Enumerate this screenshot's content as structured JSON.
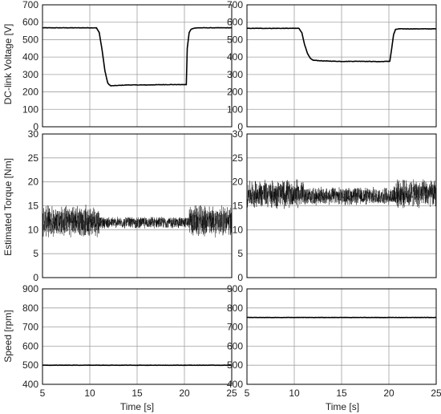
{
  "chart_data": {
    "type": "line",
    "layout": "3 rows x 2 columns, shared x-axis per column",
    "grid": true,
    "colors": {
      "line": "#000000",
      "grid": "#a0a0a0",
      "frame": "#000000"
    },
    "x_axis": {
      "label": "Time [s]",
      "range": [
        5,
        25
      ],
      "ticks": [
        5,
        10,
        15,
        20,
        25
      ]
    },
    "rows": [
      {
        "ylabel": "DC-link Voltage [V]",
        "ylim": [
          0,
          700
        ],
        "yticks": [
          0,
          100,
          200,
          300,
          400,
          500,
          600,
          700
        ],
        "style": "trace",
        "series": [
          {
            "column": "left",
            "x": [
              5,
              10.7,
              11.0,
              11.3,
              11.6,
              11.9,
              12.2,
              14,
              16,
              18,
              20.2,
              20.3,
              20.5,
              20.7,
              21,
              21.5,
              25
            ],
            "y": [
              568,
              568,
              540,
              440,
              320,
              250,
              235,
              240,
              240,
              242,
              242,
              450,
              540,
              560,
              566,
              568,
              568
            ]
          },
          {
            "column": "right",
            "x": [
              5,
              10.5,
              10.8,
              11.1,
              11.4,
              11.7,
              12,
              13,
              15,
              17,
              19,
              20.1,
              20.3,
              20.5,
              20.7,
              21,
              25
            ],
            "y": [
              565,
              565,
              540,
              470,
              420,
              392,
              382,
              378,
              375,
              376,
              374,
              376,
              450,
              530,
              558,
              562,
              562
            ]
          }
        ]
      },
      {
        "ylabel": "Estimated Torque [Nm]",
        "ylim": [
          0,
          30
        ],
        "yticks": [
          0,
          5,
          10,
          15,
          20,
          25,
          30
        ],
        "style": "noise",
        "series": [
          {
            "column": "left",
            "segments": [
              {
                "x": [
                  5,
                  11
                ],
                "mean": 11.8,
                "amp": 3.5
              },
              {
                "x": [
                  11,
                  20.5
                ],
                "mean": 11.5,
                "amp": 1.3
              },
              {
                "x": [
                  20.5,
                  25
                ],
                "mean": 11.8,
                "amp": 3.5
              }
            ]
          },
          {
            "column": "right",
            "segments": [
              {
                "x": [
                  5,
                  11
                ],
                "mean": 17.5,
                "amp": 3.2
              },
              {
                "x": [
                  11,
                  20.5
                ],
                "mean": 17.0,
                "amp": 2.0
              },
              {
                "x": [
                  20.5,
                  25
                ],
                "mean": 17.5,
                "amp": 3.2
              }
            ]
          }
        ]
      },
      {
        "ylabel": "Speed [rpm]",
        "ylim": [
          400,
          900
        ],
        "yticks": [
          400,
          500,
          600,
          700,
          800,
          900
        ],
        "style": "trace",
        "series": [
          {
            "column": "left",
            "x": [
              5,
              25
            ],
            "y": [
              500,
              500
            ]
          },
          {
            "column": "right",
            "x": [
              5,
              25
            ],
            "y": [
              750,
              750
            ]
          }
        ]
      }
    ]
  }
}
